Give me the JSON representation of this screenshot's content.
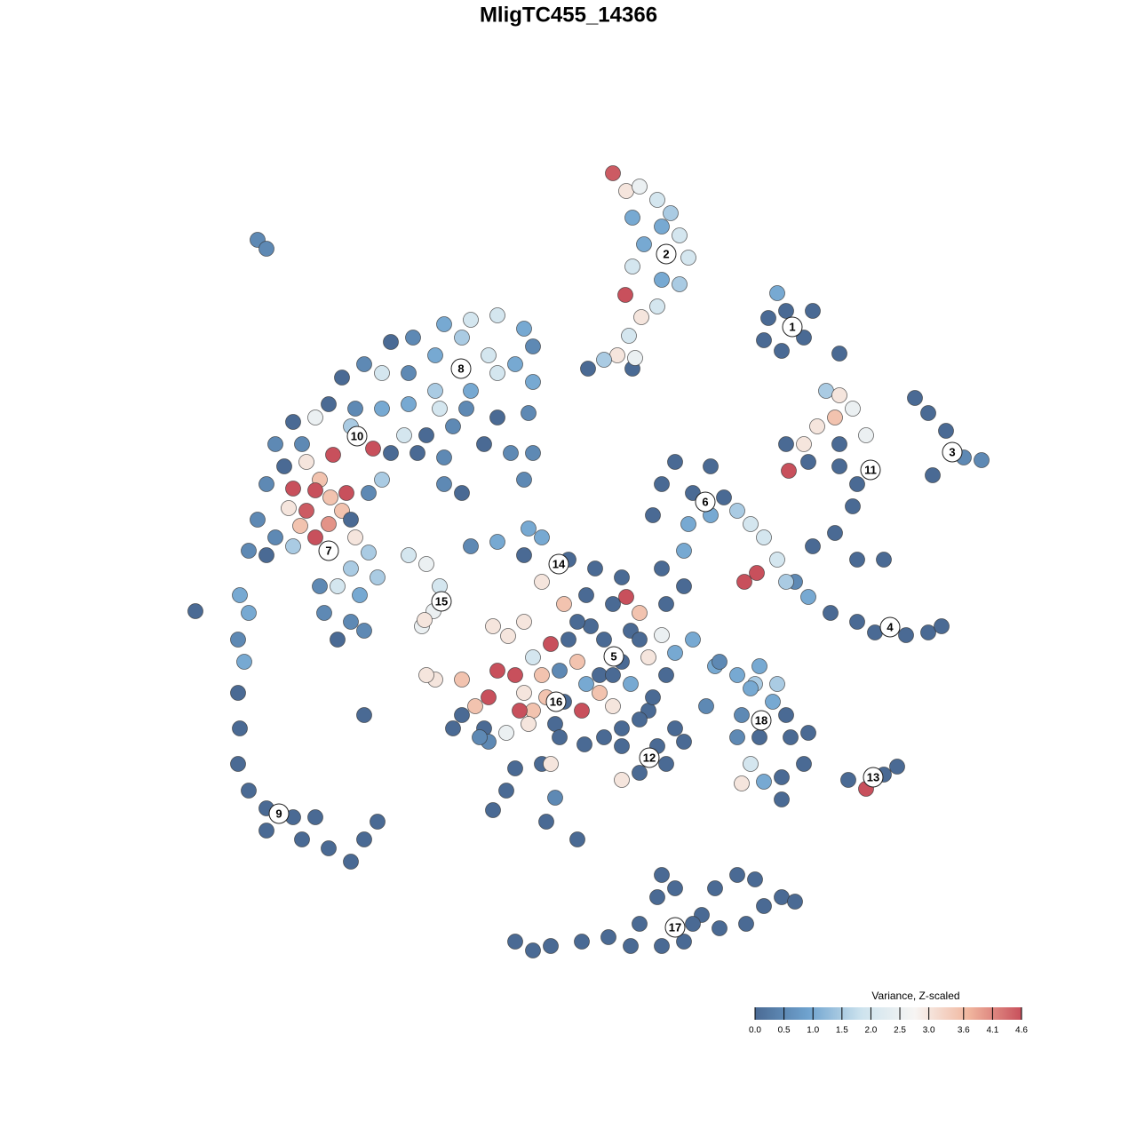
{
  "chart_data": {
    "type": "scatter",
    "title": "MligTC455_14366",
    "xlim": [
      20,
      115
    ],
    "ylim": [
      113,
      13
    ],
    "x": [
      69,
      70.5,
      72,
      74,
      75.5,
      76.5,
      77.5,
      74.5,
      72.5,
      71.2,
      74.5,
      76.5,
      74,
      72.2,
      70.8,
      69.5,
      70.4,
      68,
      66.2,
      71.2,
      71.5,
      71.2,
      87.5,
      86.5,
      88.5,
      86,
      88,
      90.5,
      91.5,
      94.5,
      93,
      94.5,
      96,
      94,
      92,
      97.5,
      90.5,
      88.5,
      94.5,
      91,
      94.5,
      88.8,
      96.5,
      96,
      94,
      91.5,
      96.5,
      99.5,
      103,
      104.5,
      106.5,
      108.5,
      110.5,
      105,
      89.5,
      91,
      93.5,
      96.5,
      98.5,
      102,
      104.5,
      106,
      76,
      80,
      74.5,
      78,
      81.5,
      73.5,
      77.5,
      80,
      83,
      84.5,
      77,
      74.5,
      86,
      87.5,
      88.5,
      83.8,
      85.2,
      50,
      53,
      56,
      59,
      60,
      58,
      55,
      52,
      49,
      46.5,
      44,
      41,
      43,
      46,
      49,
      53,
      56,
      60,
      59.5,
      56,
      52.5,
      49.5,
      46,
      43,
      40,
      37,
      38.5,
      35.5,
      39.5,
      42,
      45.5,
      48,
      51,
      54.5,
      57.5,
      60,
      59,
      50,
      47,
      44,
      33,
      31,
      34,
      32,
      30,
      50,
      52,
      43,
      34.5,
      37.5,
      36,
      33,
      35.5,
      37.2,
      32.5,
      34.5,
      38.5,
      37,
      33.8,
      39.5,
      40,
      35.5,
      31,
      29,
      30,
      28,
      33,
      39,
      41.5,
      41.5,
      39.5,
      42.5,
      38,
      36,
      40.5,
      36.5,
      39.5,
      38,
      41,
      46,
      48,
      49.5,
      48.8,
      47.5,
      47.8,
      29,
      30,
      22,
      27,
      28,
      26.8,
      27.5,
      26.8,
      27,
      26.8,
      28,
      30,
      33,
      35.5,
      34,
      37,
      39.5,
      41,
      42.5,
      41,
      30,
      53,
      56,
      59.5,
      61,
      59,
      64,
      67,
      70,
      61,
      63.5,
      66,
      69,
      70.5,
      72,
      75,
      77,
      74.5,
      71,
      66.5,
      64,
      62,
      59,
      55.5,
      57.2,
      60,
      58,
      56,
      61,
      65,
      67.5,
      70,
      73,
      76,
      78,
      80.5,
      83,
      85,
      87.5,
      66,
      67.5,
      69,
      65.5,
      63.5,
      61.5,
      59,
      60,
      58.5,
      55,
      53.5,
      52,
      54.5,
      57,
      59.5,
      62.5,
      63,
      65.8,
      70,
      73,
      76,
      73.5,
      71,
      55,
      58,
      61,
      62,
      70,
      72,
      75,
      57,
      55.5,
      62.5,
      61.5,
      65,
      79.5,
      51,
      75,
      77,
      52,
      49,
      48,
      63,
      54,
      68,
      72,
      69,
      65,
      72,
      70,
      74,
      68,
      81,
      85.5,
      84.5,
      87,
      83.5,
      85.5,
      89,
      91,
      90.5,
      88,
      84.5,
      83.5,
      86,
      88,
      83,
      88.5,
      95.5,
      97.5,
      99.5,
      101,
      58,
      60,
      62,
      65.5,
      68.5,
      71,
      72,
      74,
      76,
      74.5,
      77,
      79,
      80.5,
      83,
      85,
      86,
      84,
      81,
      88,
      89.5,
      78,
      74.5
    ],
    "y": [
      19.5,
      21.5,
      21,
      22.5,
      24,
      26.5,
      29,
      25.5,
      27.5,
      30,
      31.5,
      32,
      34.5,
      35.7,
      37.8,
      40,
      33.2,
      40.5,
      41.5,
      41.5,
      40.3,
      24.5,
      33,
      35.8,
      35,
      38.3,
      39.5,
      38,
      35,
      39.8,
      44,
      44.5,
      46,
      47,
      48,
      49,
      50,
      50,
      50,
      52,
      52.5,
      53,
      54.5,
      57,
      60,
      61.5,
      63,
      63,
      44.8,
      46.5,
      48.5,
      51.5,
      51.8,
      53.5,
      65.5,
      67.2,
      69,
      70,
      71.2,
      71.5,
      71.2,
      70.5,
      52,
      52.5,
      54.5,
      55.5,
      56,
      58,
      59,
      58,
      57.5,
      59,
      62,
      64,
      60.5,
      63,
      65.5,
      65.5,
      64.5,
      36.5,
      36,
      35.5,
      37,
      39,
      41,
      40,
      38,
      40,
      38,
      38.5,
      41,
      42,
      42,
      44,
      44,
      42,
      43,
      46.5,
      47,
      46,
      46,
      45.5,
      46,
      46,
      45.5,
      42.5,
      47,
      48,
      50.5,
      49,
      49,
      48,
      50,
      51,
      51,
      54,
      51.5,
      51,
      51,
      47.5,
      50,
      50,
      52.5,
      54.5,
      54.5,
      55.5,
      54,
      52,
      51.2,
      54,
      55,
      55.2,
      56,
      57.2,
      57.5,
      57.5,
      59,
      59.2,
      58.5,
      60.5,
      60.5,
      60.5,
      58.5,
      62.5,
      62,
      61.5,
      55.5,
      55.5,
      62.2,
      64,
      65,
      66,
      66,
      67,
      69,
      70,
      72,
      71,
      62.5,
      63.5,
      66,
      68.8,
      70.5,
      69.8,
      27,
      28,
      68.8,
      67,
      69,
      72,
      74.5,
      78,
      82,
      86,
      89,
      91,
      92,
      92,
      94.5,
      95.5,
      97,
      94.5,
      92.5,
      80.5,
      93.5,
      61.5,
      61,
      59.5,
      60.5,
      62.5,
      63,
      64,
      65,
      65.5,
      68,
      67,
      68,
      67.2,
      69,
      68,
      66,
      71.5,
      71,
      70.5,
      72,
      72.5,
      70,
      70.5,
      71.6,
      74,
      76,
      75.5,
      76,
      74.5,
      76,
      74.5,
      74,
      73.5,
      72,
      75,
      76,
      77,
      77,
      77,
      78,
      79.5,
      80,
      79,
      78.5,
      78,
      80,
      80,
      78.5,
      79.5,
      80.5,
      82,
      82.5,
      81.5,
      81.5,
      83,
      83.8,
      82,
      80,
      82,
      78.5,
      77,
      83.5,
      86.5,
      86,
      86,
      87.8,
      87,
      86,
      89,
      91.2,
      89.8,
      92.5,
      94.5,
      79.5,
      82,
      76,
      83.5,
      76.5,
      76.5,
      76,
      75.5,
      83,
      72,
      72,
      76,
      70,
      81,
      84,
      84,
      83,
      74.5,
      75,
      77.5,
      79,
      80.5,
      83,
      83,
      82.5,
      86,
      87.5,
      86,
      88.2,
      88,
      90,
      83,
      80.5,
      87.8,
      88.8,
      87.2,
      86.3,
      106,
      107,
      106.5,
      106,
      105.5,
      106.5,
      104,
      101,
      100,
      106.5,
      106,
      103,
      100,
      98.5,
      99,
      102,
      104,
      104.5,
      101,
      101.5,
      104,
      98.5
    ],
    "values": [
      4.5,
      3,
      2.5,
      2,
      1.5,
      2,
      2,
      1,
      1,
      2,
      1,
      1.5,
      2,
      3,
      2,
      3,
      4.6,
      1.5,
      0,
      0,
      2.5,
      1,
      1,
      0,
      0,
      0,
      0,
      0,
      0,
      0,
      1.5,
      3,
      2.5,
      3.5,
      3,
      2.5,
      3,
      0,
      0,
      0,
      0,
      4.6,
      0,
      0,
      0,
      0,
      0,
      0,
      0,
      0,
      0,
      0.5,
      0.5,
      0,
      0.5,
      1,
      0,
      0,
      0,
      0,
      0,
      0,
      0,
      0,
      0,
      0,
      0,
      0,
      1,
      1,
      1.5,
      2,
      1,
      0,
      2,
      2,
      1.5,
      4.6,
      4.6,
      1,
      2,
      2,
      1,
      0.5,
      1,
      2,
      1.5,
      1,
      0.5,
      0,
      0.5,
      2,
      0.5,
      1.5,
      1,
      2,
      1,
      0.5,
      0,
      0.5,
      2,
      1,
      1,
      0.5,
      0,
      0,
      2.5,
      1.5,
      4.6,
      2,
      0,
      0.5,
      0,
      0.5,
      0.5,
      0.5,
      0.5,
      0,
      0,
      0,
      0.5,
      0.5,
      0,
      0.5,
      0.5,
      0,
      1.5,
      3,
      4.6,
      3.5,
      4.6,
      4.6,
      3.5,
      3,
      4.5,
      3.5,
      4,
      3.5,
      0,
      3,
      4.6,
      0.5,
      0.5,
      0,
      0.5,
      1.5,
      4.6,
      0.5,
      1.5,
      1.5,
      1.5,
      2,
      0.5,
      1,
      0.5,
      0.5,
      0,
      0.5,
      2,
      2.5,
      2,
      2.5,
      2.5,
      3,
      0.5,
      0.5,
      0,
      1,
      1,
      0.5,
      1,
      0,
      0,
      0,
      0,
      0,
      0,
      0,
      0,
      0,
      0,
      0,
      0,
      0,
      0,
      0.5,
      1,
      1,
      1,
      0,
      0,
      0,
      0,
      3,
      3.5,
      0,
      0,
      4.6,
      3.5,
      0,
      0,
      2.5,
      0,
      0,
      0,
      4.6,
      3,
      3,
      3,
      2,
      4.6,
      4.6,
      3.5,
      3.5,
      0,
      0,
      3,
      1,
      1,
      1,
      1,
      1.5,
      1.5,
      1,
      3.5,
      3,
      4.6,
      0,
      3.5,
      3,
      3.5,
      4.6,
      4.6,
      3.5,
      0,
      0,
      2.5,
      3,
      0,
      0,
      0,
      0,
      0,
      0,
      0,
      1,
      0.5,
      0,
      0,
      3,
      3,
      0,
      0,
      0,
      0,
      0.5,
      0,
      0,
      0.5,
      0,
      0,
      0,
      3.5,
      3,
      3,
      0.5,
      0.5,
      0,
      0,
      0,
      0,
      0,
      0,
      0,
      0,
      0.5,
      1,
      1,
      1,
      0.5,
      0,
      0,
      0,
      0,
      0,
      2,
      3,
      1,
      0,
      0.5,
      0,
      0,
      4.6,
      0,
      0,
      0,
      0,
      0,
      0,
      0,
      0,
      0,
      0,
      0,
      0,
      0,
      0,
      0,
      0,
      0,
      0,
      0,
      0,
      0,
      0,
      0,
      0
    ],
    "cluster_labels": [
      {
        "text": "1",
        "x": 89.2,
        "y": 36.8
      },
      {
        "text": "2",
        "x": 75,
        "y": 28.6
      },
      {
        "text": "3",
        "x": 107.2,
        "y": 50.9
      },
      {
        "text": "4",
        "x": 100.2,
        "y": 70.6
      },
      {
        "text": "5",
        "x": 69.1,
        "y": 73.9
      },
      {
        "text": "6",
        "x": 79.4,
        "y": 56.5
      },
      {
        "text": "7",
        "x": 37,
        "y": 62
      },
      {
        "text": "8",
        "x": 51.9,
        "y": 41.5
      },
      {
        "text": "9",
        "x": 31.4,
        "y": 91.6
      },
      {
        "text": "10",
        "x": 40.2,
        "y": 49.1
      },
      {
        "text": "11",
        "x": 98,
        "y": 52.9
      },
      {
        "text": "12",
        "x": 73.1,
        "y": 85.3
      },
      {
        "text": "13",
        "x": 98.3,
        "y": 87.5
      },
      {
        "text": "14",
        "x": 62.9,
        "y": 63.5
      },
      {
        "text": "15",
        "x": 49.7,
        "y": 67.7
      },
      {
        "text": "16",
        "x": 62.6,
        "y": 79
      },
      {
        "text": "17",
        "x": 76,
        "y": 104.4
      },
      {
        "text": "18",
        "x": 85.7,
        "y": 81.1
      }
    ],
    "colorbar": {
      "title": "Variance, Z-scaled",
      "lim": [
        0,
        4.6
      ],
      "colors": [
        "#4a6a94",
        "#6fa3cf",
        "#cde3ee",
        "#f7f5f3",
        "#f1b79f",
        "#c8505c"
      ],
      "ticks": [
        {
          "value": 0,
          "label": "0.0"
        },
        0.5,
        {
          "value": 1,
          "label": "1.0"
        },
        1.5,
        {
          "value": 2,
          "label": "2.0"
        },
        2.5,
        {
          "value": 3,
          "label": "3.0"
        },
        3.6,
        4.1,
        4.6
      ]
    }
  }
}
